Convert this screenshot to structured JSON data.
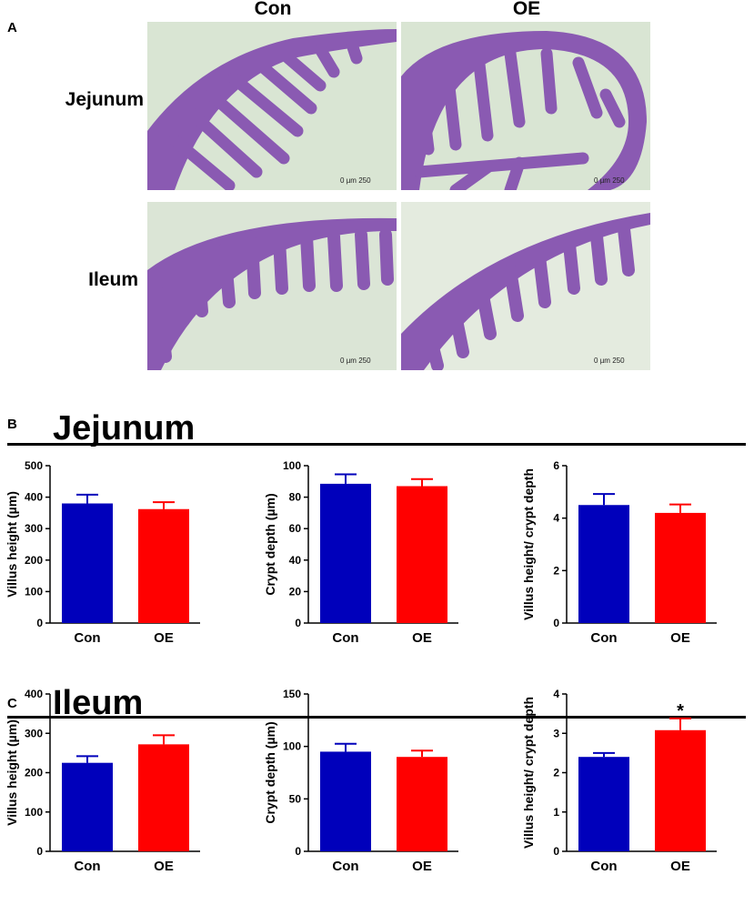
{
  "panel_a": {
    "letter": "A",
    "columns": [
      "Con",
      "OE"
    ],
    "rows": [
      "Jejunum",
      "Ileum"
    ],
    "scale_bar": {
      "left": "0",
      "unit": "µm",
      "right": "250"
    }
  },
  "panel_b": {
    "letter": "B",
    "title": "Jejunum"
  },
  "panel_c": {
    "letter": "C",
    "title": "Ileum"
  },
  "colors": {
    "con": "#0000bb",
    "oe": "#ff0000",
    "tissue": "#8a5ab2",
    "background": "#d9e5d3"
  },
  "chart_data": [
    {
      "type": "bar",
      "categories": [
        "Con",
        "OE"
      ],
      "values": [
        380,
        362
      ],
      "errors": [
        28,
        22
      ],
      "ylabel": "Villus height (µm)",
      "ylim": [
        0,
        500
      ],
      "ticks": [
        0,
        100,
        200,
        300,
        400,
        500
      ],
      "annotations": [
        "",
        ""
      ]
    },
    {
      "type": "bar",
      "categories": [
        "Con",
        "OE"
      ],
      "values": [
        88.5,
        87
      ],
      "errors": [
        6,
        4.5
      ],
      "ylabel": "Crypt depth (µm)",
      "ylim": [
        0,
        100
      ],
      "ticks": [
        0,
        20,
        40,
        60,
        80,
        100
      ],
      "annotations": [
        "",
        ""
      ]
    },
    {
      "type": "bar",
      "categories": [
        "Con",
        "OE"
      ],
      "values": [
        4.5,
        4.2
      ],
      "errors": [
        0.42,
        0.32
      ],
      "ylabel": "Villus height/ crypt depth",
      "ylim": [
        0,
        6
      ],
      "ticks": [
        0,
        2,
        4,
        6
      ],
      "annotations": [
        "",
        ""
      ]
    },
    {
      "type": "bar",
      "categories": [
        "Con",
        "OE"
      ],
      "values": [
        225,
        272
      ],
      "errors": [
        17,
        23
      ],
      "ylabel": "Villus height (µm)",
      "ylim": [
        0,
        400
      ],
      "ticks": [
        0,
        100,
        200,
        300,
        400
      ],
      "annotations": [
        "",
        ""
      ]
    },
    {
      "type": "bar",
      "categories": [
        "Con",
        "OE"
      ],
      "values": [
        95,
        90
      ],
      "errors": [
        7.5,
        6
      ],
      "ylabel": "Crypt depth (µm)",
      "ylim": [
        0,
        150
      ],
      "ticks": [
        0,
        50,
        100,
        150
      ],
      "annotations": [
        "",
        ""
      ]
    },
    {
      "type": "bar",
      "categories": [
        "Con",
        "OE"
      ],
      "values": [
        2.4,
        3.08
      ],
      "errors": [
        0.1,
        0.3
      ],
      "ylabel": "Villus height/ crypt depth",
      "ylim": [
        0,
        4
      ],
      "ticks": [
        0,
        1,
        2,
        3,
        4
      ],
      "annotations": [
        "",
        "*"
      ]
    }
  ]
}
